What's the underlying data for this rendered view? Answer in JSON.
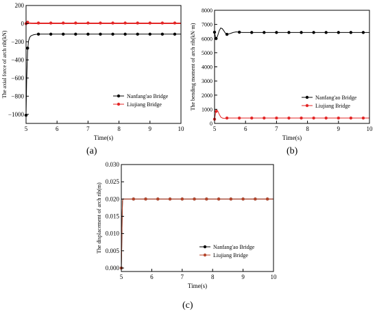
{
  "chart_data": [
    {
      "panel": "(a)",
      "type": "line",
      "xlabel": "Time(s)",
      "ylabel": "The axial force of arch rib(kN)",
      "xlim": [
        5,
        10
      ],
      "ylim": [
        -1100,
        200
      ],
      "xticks": [
        5,
        6,
        7,
        8,
        9,
        10
      ],
      "yticks": [
        -1000,
        -800,
        -600,
        -400,
        -200,
        0,
        200
      ],
      "ytick_labels": [
        "−1000",
        "−800",
        "−600",
        "−400",
        "−200",
        "0",
        "200"
      ],
      "grid": false,
      "legend_position": "lower-right",
      "reference_line": 0,
      "series": [
        {
          "name": "Nanfang'ao Bridge",
          "color": "#000000",
          "x": [
            5.0,
            5.02,
            5.05,
            5.08,
            5.12,
            5.16,
            5.2,
            5.25,
            5.3,
            5.35,
            5.4,
            5.5,
            5.6,
            5.8,
            6.0,
            6.5,
            7.0,
            8.0,
            9.0,
            10.0
          ],
          "values": [
            -1010,
            -620,
            -300,
            -190,
            -150,
            -135,
            -128,
            -122,
            -119,
            -117,
            -116,
            -116,
            -116,
            -116,
            -116,
            -116,
            -116,
            -116,
            -116,
            -116
          ],
          "markers_x": [
            5.0,
            5.05,
            5.4,
            5.8,
            6.2,
            6.6,
            7.0,
            7.4,
            7.8,
            8.2,
            8.6,
            9.0,
            9.4,
            9.8
          ],
          "markers_y": [
            -1010,
            -270,
            -116,
            -116,
            -116,
            -116,
            -116,
            -116,
            -116,
            -116,
            -116,
            -116,
            -116,
            -116
          ]
        },
        {
          "name": "Liujiang Bridge",
          "color": "#e32626",
          "x": [
            5.0,
            5.03,
            5.06,
            5.1,
            5.15,
            5.2,
            5.3,
            5.4,
            6.0,
            7.0,
            8.0,
            9.0,
            10.0
          ],
          "values": [
            0,
            12,
            18,
            12,
            9,
            8,
            7,
            7,
            7,
            7,
            7,
            7,
            7
          ],
          "markers_x": [
            5.0,
            5.05,
            5.4,
            5.8,
            6.2,
            6.6,
            7.0,
            7.4,
            7.8,
            8.2,
            8.6,
            9.0,
            9.4,
            9.8
          ],
          "markers_y": [
            0,
            15,
            7,
            7,
            7,
            7,
            7,
            7,
            7,
            7,
            7,
            7,
            7,
            7
          ]
        }
      ]
    },
    {
      "panel": "(b)",
      "type": "line",
      "xlabel": "Time(s)",
      "ylabel": "The bending moment of arch rib(kN·m)",
      "xlim": [
        5,
        10
      ],
      "ylim": [
        0,
        8000
      ],
      "xticks": [
        5,
        6,
        7,
        8,
        9,
        10
      ],
      "yticks": [
        0,
        1000,
        2000,
        3000,
        4000,
        5000,
        6000,
        7000,
        8000
      ],
      "ytick_labels": [
        "0",
        "1000",
        "2000",
        "3000",
        "4000",
        "5000",
        "6000",
        "7000",
        "8000"
      ],
      "grid": false,
      "legend_position": "right",
      "series": [
        {
          "name": "Nanfang'ao Bridge",
          "color": "#000000",
          "x": [
            5.0,
            5.03,
            5.06,
            5.1,
            5.15,
            5.2,
            5.25,
            5.3,
            5.35,
            5.4,
            5.5,
            5.6,
            5.7,
            5.8,
            5.9,
            6.0,
            6.5,
            7.0,
            8.0,
            9.0,
            10.0
          ],
          "values": [
            6450,
            6100,
            6000,
            6200,
            6550,
            6750,
            6700,
            6550,
            6380,
            6300,
            6350,
            6430,
            6470,
            6450,
            6430,
            6430,
            6430,
            6430,
            6430,
            6430,
            6430
          ],
          "markers_x": [
            5.0,
            5.05,
            5.4,
            5.8,
            6.2,
            6.6,
            7.0,
            7.4,
            7.8,
            8.2,
            8.6,
            9.0,
            9.4,
            9.8
          ],
          "markers_y": [
            6450,
            6000,
            6300,
            6450,
            6430,
            6430,
            6430,
            6430,
            6430,
            6430,
            6430,
            6430,
            6430,
            6430
          ]
        },
        {
          "name": "Liujiang Bridge",
          "color": "#e32626",
          "x": [
            5.0,
            5.03,
            5.06,
            5.1,
            5.15,
            5.2,
            5.25,
            5.3,
            5.35,
            5.4,
            5.5,
            6.0,
            7.0,
            8.0,
            9.0,
            10.0
          ],
          "values": [
            300,
            700,
            950,
            900,
            650,
            450,
            380,
            360,
            370,
            380,
            380,
            380,
            380,
            380,
            380,
            380
          ],
          "markers_x": [
            5.0,
            5.05,
            5.4,
            5.8,
            6.2,
            6.6,
            7.0,
            7.4,
            7.8,
            8.2,
            8.6,
            9.0,
            9.4,
            9.8
          ],
          "markers_y": [
            300,
            850,
            380,
            380,
            380,
            380,
            380,
            380,
            380,
            380,
            380,
            380,
            380,
            380
          ]
        }
      ]
    },
    {
      "panel": "(c)",
      "type": "line",
      "xlabel": "Time(s)",
      "ylabel": "The displacement of arch rib(m)",
      "xlim": [
        5,
        10
      ],
      "ylim": [
        -0.001,
        0.03
      ],
      "xticks": [
        5,
        6,
        7,
        8,
        9,
        10
      ],
      "yticks": [
        0.0,
        0.005,
        0.01,
        0.015,
        0.02,
        0.025,
        0.03
      ],
      "ytick_labels": [
        "0.000",
        "0.005",
        "0.010",
        "0.015",
        "0.020",
        "0.025",
        "0.030"
      ],
      "grid": false,
      "legend_position": "lower-right",
      "reference_line": 0.02,
      "series": [
        {
          "name": "Nanfang'ao Bridge",
          "color": "#000000",
          "x": [
            5.0,
            5.01,
            5.02,
            5.03,
            5.04,
            5.05,
            6.0,
            7.0,
            8.0,
            9.0,
            10.0
          ],
          "values": [
            0.0,
            0.004,
            0.01,
            0.016,
            0.0195,
            0.02,
            0.02,
            0.02,
            0.02,
            0.02,
            0.02
          ],
          "markers_x": [
            5.0,
            5.4,
            5.8,
            6.2,
            6.6,
            7.0,
            7.4,
            7.8,
            8.2,
            8.6,
            9.0,
            9.4,
            9.8
          ],
          "markers_y": [
            0.0,
            0.02,
            0.02,
            0.02,
            0.02,
            0.02,
            0.02,
            0.02,
            0.02,
            0.02,
            0.02,
            0.02,
            0.02
          ]
        },
        {
          "name": "Liujiang Bridge",
          "color": "#b5452b",
          "x": [
            5.0,
            5.01,
            5.02,
            5.03,
            5.04,
            5.05,
            6.0,
            7.0,
            8.0,
            9.0,
            10.0
          ],
          "values": [
            0.0,
            0.004,
            0.01,
            0.016,
            0.0195,
            0.02,
            0.02,
            0.02,
            0.02,
            0.02,
            0.02
          ],
          "markers_x": [
            5.0,
            5.4,
            5.8,
            6.2,
            6.6,
            7.0,
            7.4,
            7.8,
            8.2,
            8.6,
            9.0,
            9.4,
            9.8
          ],
          "markers_y": [
            0.0,
            0.02,
            0.02,
            0.02,
            0.02,
            0.02,
            0.02,
            0.02,
            0.02,
            0.02,
            0.02,
            0.02,
            0.02
          ]
        }
      ]
    }
  ]
}
